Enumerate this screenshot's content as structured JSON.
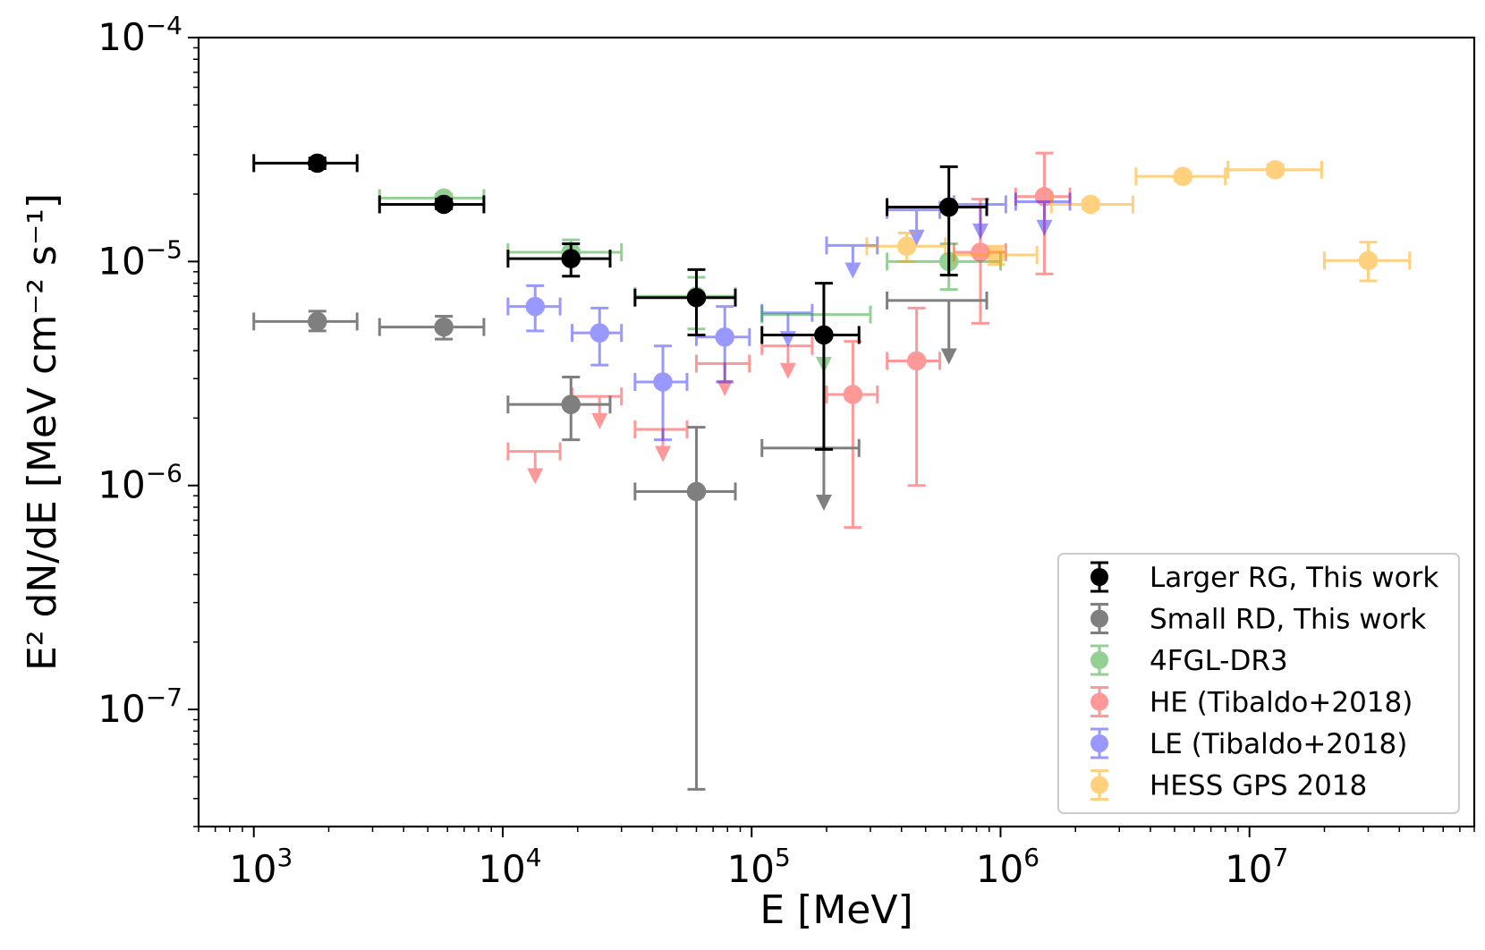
{
  "chart_data": {
    "type": "scatter",
    "title": "",
    "xlabel": "E [MeV]",
    "ylabel": "E² dN/dE [MeV cm⁻² s⁻¹]",
    "xscale": "log",
    "yscale": "log",
    "xlim": [
      600,
      80000000
    ],
    "ylim": [
      3e-08,
      0.0001
    ],
    "x_ticks": [
      {
        "value": 1000,
        "base": "10",
        "exp": "3"
      },
      {
        "value": 10000,
        "base": "10",
        "exp": "4"
      },
      {
        "value": 100000,
        "base": "10",
        "exp": "5"
      },
      {
        "value": 1000000,
        "base": "10",
        "exp": "6"
      },
      {
        "value": 10000000,
        "base": "10",
        "exp": "7"
      }
    ],
    "y_ticks": [
      {
        "value": 1e-07,
        "base": "10",
        "exp": "−7"
      },
      {
        "value": 1e-06,
        "base": "10",
        "exp": "−6"
      },
      {
        "value": 1e-05,
        "base": "10",
        "exp": "−5"
      },
      {
        "value": 0.0001,
        "base": "10",
        "exp": "−4"
      }
    ],
    "legend_position": "lower-right",
    "series": [
      {
        "name": "Larger RG, This work",
        "color": "#000000",
        "opacity": 1.0,
        "marker": "filled",
        "points": [
          {
            "x": 1800,
            "y": 2.75e-05,
            "xlo": 1000,
            "xhi": 2600,
            "ylo": 2.6e-05,
            "yhi": 2.9e-05
          },
          {
            "x": 5800,
            "y": 1.8e-05,
            "xlo": 3200,
            "xhi": 8400,
            "ylo": 1.72e-05,
            "yhi": 1.9e-05
          },
          {
            "x": 18800,
            "y": 1.03e-05,
            "xlo": 10500,
            "xhi": 27000,
            "ylo": 8.6e-06,
            "yhi": 1.2e-05
          },
          {
            "x": 60000,
            "y": 6.9e-06,
            "xlo": 34000,
            "xhi": 86000,
            "ylo": 4.7e-06,
            "yhi": 9.2e-06
          },
          {
            "x": 195000,
            "y": 4.7e-06,
            "xlo": 110000,
            "xhi": 270000,
            "ylo": 1.45e-06,
            "yhi": 8e-06
          },
          {
            "x": 620000,
            "y": 1.75e-05,
            "xlo": 350000,
            "xhi": 880000,
            "ylo": 8.7e-06,
            "yhi": 2.65e-05
          }
        ]
      },
      {
        "name": "Small RD, This work",
        "color": "#7f7f7f",
        "opacity": 1.0,
        "marker": "filled",
        "points": [
          {
            "x": 1800,
            "y": 5.4e-06,
            "xlo": 1000,
            "xhi": 2600,
            "ylo": 4.9e-06,
            "yhi": 6e-06
          },
          {
            "x": 5800,
            "y": 5.1e-06,
            "xlo": 3200,
            "xhi": 8400,
            "ylo": 4.5e-06,
            "yhi": 5.7e-06
          },
          {
            "x": 18800,
            "y": 2.3e-06,
            "xlo": 10500,
            "xhi": 27000,
            "ylo": 1.6e-06,
            "yhi": 3.05e-06
          },
          {
            "x": 60000,
            "y": 9.4e-07,
            "xlo": 34000,
            "xhi": 86000,
            "ylo": 4.4e-08,
            "yhi": 1.82e-06
          },
          {
            "x": 195000,
            "y": 1.47e-06,
            "xlo": 110000,
            "xhi": 270000,
            "ul": true,
            "yto": 8e-07
          },
          {
            "x": 620000,
            "y": 6.7e-06,
            "xlo": 350000,
            "xhi": 880000,
            "ul": true,
            "yto": 3.6e-06
          }
        ]
      },
      {
        "name": "4FGL-DR3",
        "color": "#2ca02c",
        "opacity": 0.5,
        "marker": "open",
        "points": [
          {
            "x": 5800,
            "y": 1.92e-05,
            "xlo": 3200,
            "xhi": 8400,
            "ylo": 1.85e-05,
            "yhi": 2e-05
          },
          {
            "x": 18800,
            "y": 1.1e-05,
            "xlo": 10500,
            "xhi": 30000,
            "ylo": 1e-05,
            "yhi": 1.25e-05
          },
          {
            "x": 60000,
            "y": 7e-06,
            "xlo": 34000,
            "xhi": 86000,
            "ylo": 5e-06,
            "yhi": 8.5e-06
          },
          {
            "x": 195000,
            "y": 5.8e-06,
            "xlo": 110000,
            "xhi": 300000,
            "ul": true,
            "yto": 3.3e-06
          },
          {
            "x": 620000,
            "y": 1e-05,
            "xlo": 350000,
            "xhi": 1000000,
            "ylo": 7.5e-06,
            "yhi": 1.2e-05
          }
        ]
      },
      {
        "name": "HE (Tibaldo+2018)",
        "color": "#ff0000",
        "opacity": 0.4,
        "marker": "open",
        "points": [
          {
            "x": 13500,
            "y": 1.42e-06,
            "xlo": 10500,
            "xhi": 17000,
            "ul": true,
            "yto": 1.05e-06
          },
          {
            "x": 24500,
            "y": 2.5e-06,
            "xlo": 19000,
            "xhi": 30000,
            "ul": true,
            "yto": 1.85e-06
          },
          {
            "x": 44000,
            "y": 1.78e-06,
            "xlo": 34000,
            "xhi": 55000,
            "ul": true,
            "yto": 1.32e-06
          },
          {
            "x": 78000,
            "y": 3.5e-06,
            "xlo": 60000,
            "xhi": 98000,
            "ul": true,
            "yto": 2.6e-06
          },
          {
            "x": 140000,
            "y": 4.2e-06,
            "xlo": 110000,
            "xhi": 175000,
            "ul": true,
            "yto": 3.1e-06
          },
          {
            "x": 255000,
            "y": 2.55e-06,
            "xlo": 200000,
            "xhi": 320000,
            "ylo": 6.5e-07,
            "yhi": 4.4e-06
          },
          {
            "x": 460000,
            "y": 3.6e-06,
            "xlo": 350000,
            "xhi": 570000,
            "ylo": 1e-06,
            "yhi": 6.2e-06
          },
          {
            "x": 830000,
            "y": 1.1e-05,
            "xlo": 650000,
            "xhi": 1050000,
            "ylo": 5.3e-06,
            "yhi": 1.9e-05
          },
          {
            "x": 1500000,
            "y": 1.95e-05,
            "xlo": 1150000,
            "xhi": 1900000,
            "ylo": 8.8e-06,
            "yhi": 3.05e-05
          }
        ]
      },
      {
        "name": "LE (Tibaldo+2018)",
        "color": "#0000ff",
        "opacity": 0.4,
        "marker": "open",
        "points": [
          {
            "x": 13500,
            "y": 6.3e-06,
            "xlo": 10500,
            "xhi": 17000,
            "ylo": 4.9e-06,
            "yhi": 7.8e-06
          },
          {
            "x": 24500,
            "y": 4.8e-06,
            "xlo": 19000,
            "xhi": 30000,
            "ylo": 3.45e-06,
            "yhi": 6.2e-06
          },
          {
            "x": 44000,
            "y": 2.9e-06,
            "xlo": 34000,
            "xhi": 55000,
            "ylo": 1.6e-06,
            "yhi": 4.2e-06
          },
          {
            "x": 78000,
            "y": 4.6e-06,
            "xlo": 60000,
            "xhi": 98000,
            "ylo": 2.9e-06,
            "yhi": 6.3e-06
          },
          {
            "x": 140000,
            "y": 5.9e-06,
            "xlo": 110000,
            "xhi": 175000,
            "ul": true,
            "yto": 4.3e-06
          },
          {
            "x": 255000,
            "y": 1.18e-05,
            "xlo": 200000,
            "xhi": 320000,
            "ul": true,
            "yto": 8.7e-06
          },
          {
            "x": 460000,
            "y": 1.7e-05,
            "xlo": 350000,
            "xhi": 570000,
            "ul": true,
            "yto": 1.22e-05
          },
          {
            "x": 830000,
            "y": 1.8e-05,
            "xlo": 650000,
            "xhi": 1050000,
            "ul": true,
            "yto": 1.3e-05
          },
          {
            "x": 1500000,
            "y": 1.85e-05,
            "xlo": 1150000,
            "xhi": 1900000,
            "ul": true,
            "yto": 1.35e-05
          }
        ]
      },
      {
        "name": "HESS GPS 2018",
        "color": "#ffa500",
        "opacity": 0.5,
        "marker": "open",
        "points": [
          {
            "x": 420000,
            "y": 1.17e-05,
            "xlo": 290000,
            "xhi": 600000,
            "ylo": 1e-05,
            "yhi": 1.34e-05
          },
          {
            "x": 960000,
            "y": 1.07e-05,
            "xlo": 650000,
            "xhi": 1400000,
            "ylo": 9.7e-06,
            "yhi": 1.17e-05
          },
          {
            "x": 2300000,
            "y": 1.8e-05,
            "xlo": 1600000,
            "xhi": 3400000,
            "ylo": 1.72e-05,
            "yhi": 1.88e-05
          },
          {
            "x": 5400000,
            "y": 2.4e-05,
            "xlo": 3500000,
            "xhi": 8000000,
            "ylo": 2.3e-05,
            "yhi": 2.5e-05
          },
          {
            "x": 12700000,
            "y": 2.57e-05,
            "xlo": 8200000,
            "xhi": 19500000,
            "ylo": 2.45e-05,
            "yhi": 2.7e-05
          },
          {
            "x": 30000000,
            "y": 1.01e-05,
            "xlo": 20000000,
            "xhi": 44000000,
            "ylo": 8.2e-06,
            "yhi": 1.22e-05
          }
        ]
      }
    ]
  }
}
